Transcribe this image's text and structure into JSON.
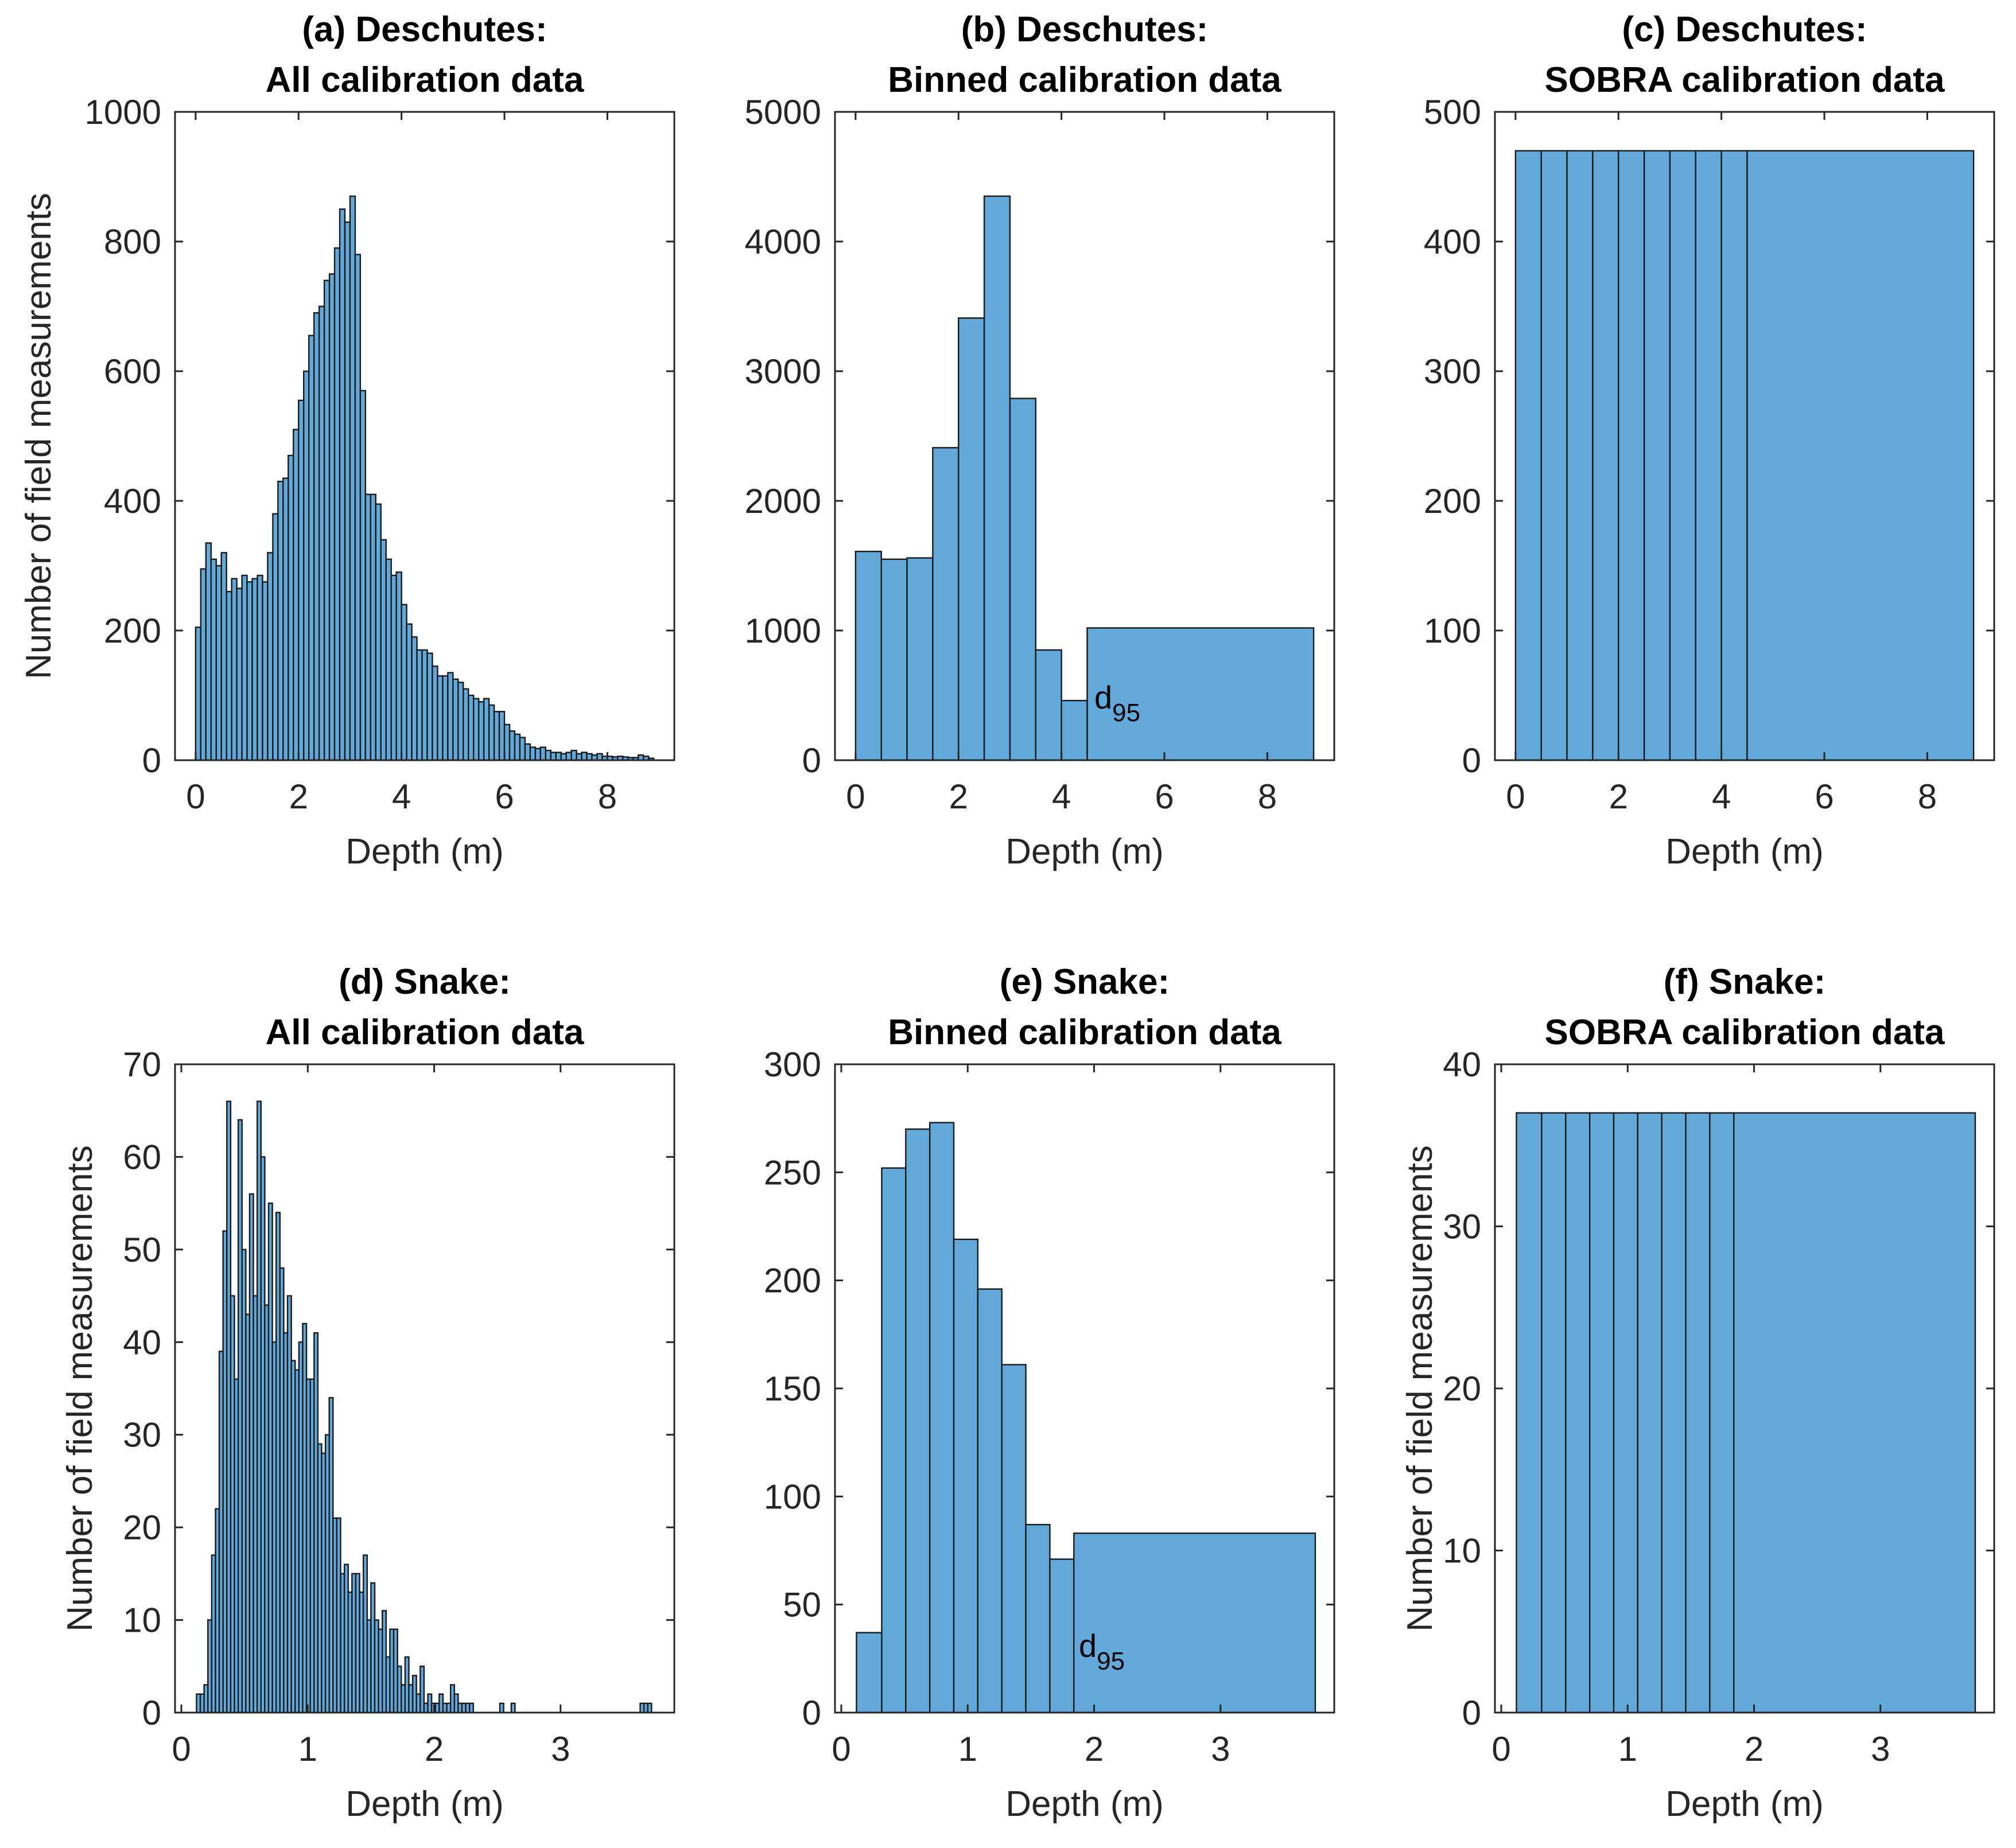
{
  "figure": {
    "bar_color": "#62a8d8",
    "edge_color": "#1a1a1a",
    "axis_color": "#262626"
  },
  "chart_data": [
    {
      "id": "a",
      "type": "bar",
      "title_line1": "(a) Deschutes:",
      "title_line2": "All calibration data",
      "xlabel": "Depth (m)",
      "ylabel": "Number of field measurements",
      "xlim": [
        -0.4,
        9.3
      ],
      "ylim": [
        0,
        1000
      ],
      "xticks": [
        0,
        2,
        4,
        6,
        8
      ],
      "yticks": [
        0,
        200,
        400,
        600,
        800,
        1000
      ],
      "bin_edges": [
        0.0,
        0.1,
        0.2,
        0.3,
        0.4,
        0.5,
        0.6,
        0.7,
        0.8,
        0.9,
        1.0,
        1.1,
        1.2,
        1.3,
        1.4,
        1.5,
        1.6,
        1.7,
        1.8,
        1.9,
        2.0,
        2.1,
        2.2,
        2.3,
        2.4,
        2.5,
        2.6,
        2.7,
        2.8,
        2.9,
        3.0,
        3.1,
        3.2,
        3.3,
        3.4,
        3.5,
        3.6,
        3.7,
        3.8,
        3.9,
        4.0,
        4.1,
        4.2,
        4.3,
        4.4,
        4.5,
        4.6,
        4.7,
        4.8,
        4.9,
        5.0,
        5.1,
        5.2,
        5.3,
        5.4,
        5.5,
        5.6,
        5.7,
        5.8,
        5.9,
        6.0,
        6.1,
        6.2,
        6.3,
        6.4,
        6.5,
        6.6,
        6.7,
        6.8,
        6.9,
        7.0,
        7.1,
        7.2,
        7.3,
        7.4,
        7.5,
        7.6,
        7.7,
        7.8,
        7.9,
        8.0,
        8.1,
        8.2,
        8.3,
        8.4,
        8.5,
        8.6,
        8.7,
        8.8,
        8.9
      ],
      "counts": [
        205,
        295,
        335,
        310,
        300,
        320,
        260,
        280,
        265,
        285,
        275,
        280,
        285,
        275,
        320,
        380,
        430,
        435,
        470,
        510,
        555,
        600,
        655,
        690,
        700,
        740,
        750,
        790,
        850,
        830,
        870,
        780,
        570,
        410,
        410,
        395,
        340,
        310,
        285,
        290,
        240,
        210,
        190,
        170,
        170,
        165,
        145,
        130,
        130,
        135,
        125,
        120,
        110,
        100,
        95,
        90,
        95,
        85,
        75,
        75,
        55,
        45,
        40,
        35,
        25,
        20,
        18,
        20,
        15,
        12,
        12,
        10,
        12,
        15,
        10,
        12,
        10,
        8,
        10,
        6,
        6,
        5,
        6,
        5,
        4,
        4,
        8,
        6,
        3
      ]
    },
    {
      "id": "b",
      "type": "bar",
      "title_line1": "(b) Deschutes:",
      "title_line2": "Binned calibration data",
      "xlabel": "Depth (m)",
      "ylabel": "",
      "xlim": [
        -0.4,
        9.3
      ],
      "ylim": [
        0,
        5000
      ],
      "xticks": [
        0,
        2,
        4,
        6,
        8
      ],
      "yticks": [
        0,
        1000,
        2000,
        3000,
        4000,
        5000
      ],
      "bin_edges": [
        0.0,
        0.5,
        1.0,
        1.5,
        2.0,
        2.5,
        3.0,
        3.5,
        4.0,
        4.5,
        8.9
      ],
      "counts": [
        1610,
        1550,
        1560,
        2410,
        3410,
        4350,
        2790,
        850,
        460,
        1020
      ],
      "annotation": {
        "label": "d",
        "subscript": "95",
        "x": 4.6,
        "y": 460
      }
    },
    {
      "id": "c",
      "type": "bar",
      "title_line1": "(c) Deschutes:",
      "title_line2": "SOBRA calibration data",
      "xlabel": "Depth (m)",
      "ylabel": "",
      "xlim": [
        -0.4,
        9.3
      ],
      "ylim": [
        0,
        500
      ],
      "xticks": [
        0,
        2,
        4,
        6,
        8
      ],
      "yticks": [
        0,
        100,
        200,
        300,
        400,
        500
      ],
      "bin_edges": [
        0.0,
        0.5,
        1.0,
        1.5,
        2.0,
        2.5,
        3.0,
        3.5,
        4.0,
        4.5,
        8.9
      ],
      "counts": [
        470,
        470,
        470,
        470,
        470,
        470,
        470,
        470,
        470,
        470
      ]
    },
    {
      "id": "d",
      "type": "bar",
      "title_line1": "(d) Snake:",
      "title_line2": "All calibration data",
      "xlabel": "Depth (m)",
      "ylabel": "Number of field measurements",
      "xlim": [
        -0.05,
        3.9
      ],
      "ylim": [
        0,
        70
      ],
      "xticks": [
        0,
        1,
        2,
        3
      ],
      "yticks": [
        0,
        10,
        20,
        30,
        40,
        50,
        60,
        70
      ],
      "bin_edges": [
        0.12,
        0.15,
        0.18,
        0.21,
        0.24,
        0.27,
        0.3,
        0.33,
        0.36,
        0.39,
        0.42,
        0.45,
        0.48,
        0.51,
        0.54,
        0.57,
        0.6,
        0.63,
        0.66,
        0.69,
        0.72,
        0.75,
        0.78,
        0.81,
        0.84,
        0.87,
        0.9,
        0.93,
        0.96,
        0.99,
        1.02,
        1.05,
        1.08,
        1.11,
        1.14,
        1.17,
        1.2,
        1.23,
        1.26,
        1.29,
        1.32,
        1.35,
        1.38,
        1.41,
        1.44,
        1.47,
        1.5,
        1.53,
        1.56,
        1.59,
        1.62,
        1.65,
        1.68,
        1.71,
        1.74,
        1.77,
        1.8,
        1.83,
        1.86,
        1.89,
        1.92,
        1.95,
        1.98,
        2.01,
        2.04,
        2.07,
        2.1,
        2.13,
        2.16,
        2.19,
        2.22,
        2.25,
        2.28,
        2.31,
        2.34,
        2.37,
        2.4,
        2.43,
        2.46,
        2.49,
        2.52,
        2.55,
        2.58,
        2.61,
        2.64,
        2.67,
        2.7,
        2.73,
        2.76,
        2.79,
        2.82,
        2.85,
        2.88,
        2.91,
        2.94,
        2.97,
        3.0,
        3.03,
        3.06,
        3.09,
        3.12,
        3.15,
        3.18,
        3.21,
        3.24,
        3.27,
        3.3,
        3.33,
        3.36,
        3.39,
        3.42,
        3.45,
        3.48,
        3.51,
        3.54,
        3.57,
        3.6,
        3.63,
        3.66,
        3.69,
        3.72,
        3.75
      ],
      "counts": [
        2,
        2,
        3,
        10,
        17,
        22,
        39,
        52,
        66,
        45,
        36,
        64,
        50,
        43,
        56,
        45,
        66,
        60,
        44,
        55,
        40,
        54,
        48,
        41,
        45,
        38,
        37,
        40,
        42,
        36,
        36,
        41,
        29,
        28,
        30,
        34,
        21,
        21,
        15,
        16,
        13,
        15,
        15,
        13,
        17,
        10,
        14,
        10,
        9,
        11,
        6,
        9,
        9,
        5,
        3,
        6,
        3,
        4,
        2,
        5,
        1,
        2,
        1,
        1,
        2,
        1,
        1,
        3,
        2,
        1,
        1,
        1,
        1,
        0,
        0,
        0,
        0,
        0,
        0,
        0,
        1,
        0,
        0,
        1,
        0,
        0,
        0,
        0,
        0,
        0,
        0,
        0,
        0,
        0,
        0,
        0,
        0,
        0,
        0,
        0,
        0,
        0,
        0,
        0,
        0,
        0,
        0,
        0,
        0,
        0,
        0,
        0,
        0,
        0,
        0,
        0,
        0,
        1,
        1,
        1,
        0,
        1
      ]
    },
    {
      "id": "e",
      "type": "bar",
      "title_line1": "(e) Snake:",
      "title_line2": "Binned calibration data",
      "xlabel": "Depth (m)",
      "ylabel": "",
      "xlim": [
        -0.05,
        3.9
      ],
      "ylim": [
        0,
        300
      ],
      "xticks": [
        0,
        1,
        2,
        3
      ],
      "yticks": [
        0,
        50,
        100,
        150,
        200,
        250,
        300
      ],
      "bin_edges": [
        0.12,
        0.32,
        0.51,
        0.7,
        0.89,
        1.08,
        1.27,
        1.46,
        1.65,
        1.84,
        3.75
      ],
      "counts": [
        37,
        252,
        270,
        273,
        219,
        196,
        161,
        87,
        71,
        83
      ],
      "annotation": {
        "label": "d",
        "subscript": "95",
        "x": 1.87,
        "y": 30
      }
    },
    {
      "id": "f",
      "type": "bar",
      "title_line1": "(f) Snake:",
      "title_line2": "SOBRA calibration data",
      "xlabel": "Depth (m)",
      "ylabel": "Number of field measurements",
      "xlim": [
        -0.05,
        3.9
      ],
      "ylim": [
        0,
        40
      ],
      "xticks": [
        0,
        1,
        2,
        3
      ],
      "yticks": [
        0,
        10,
        20,
        30,
        40
      ],
      "bin_edges": [
        0.12,
        0.32,
        0.51,
        0.7,
        0.89,
        1.08,
        1.27,
        1.46,
        1.65,
        1.84,
        3.75
      ],
      "counts": [
        37,
        37,
        37,
        37,
        37,
        37,
        37,
        37,
        37,
        37
      ]
    }
  ]
}
